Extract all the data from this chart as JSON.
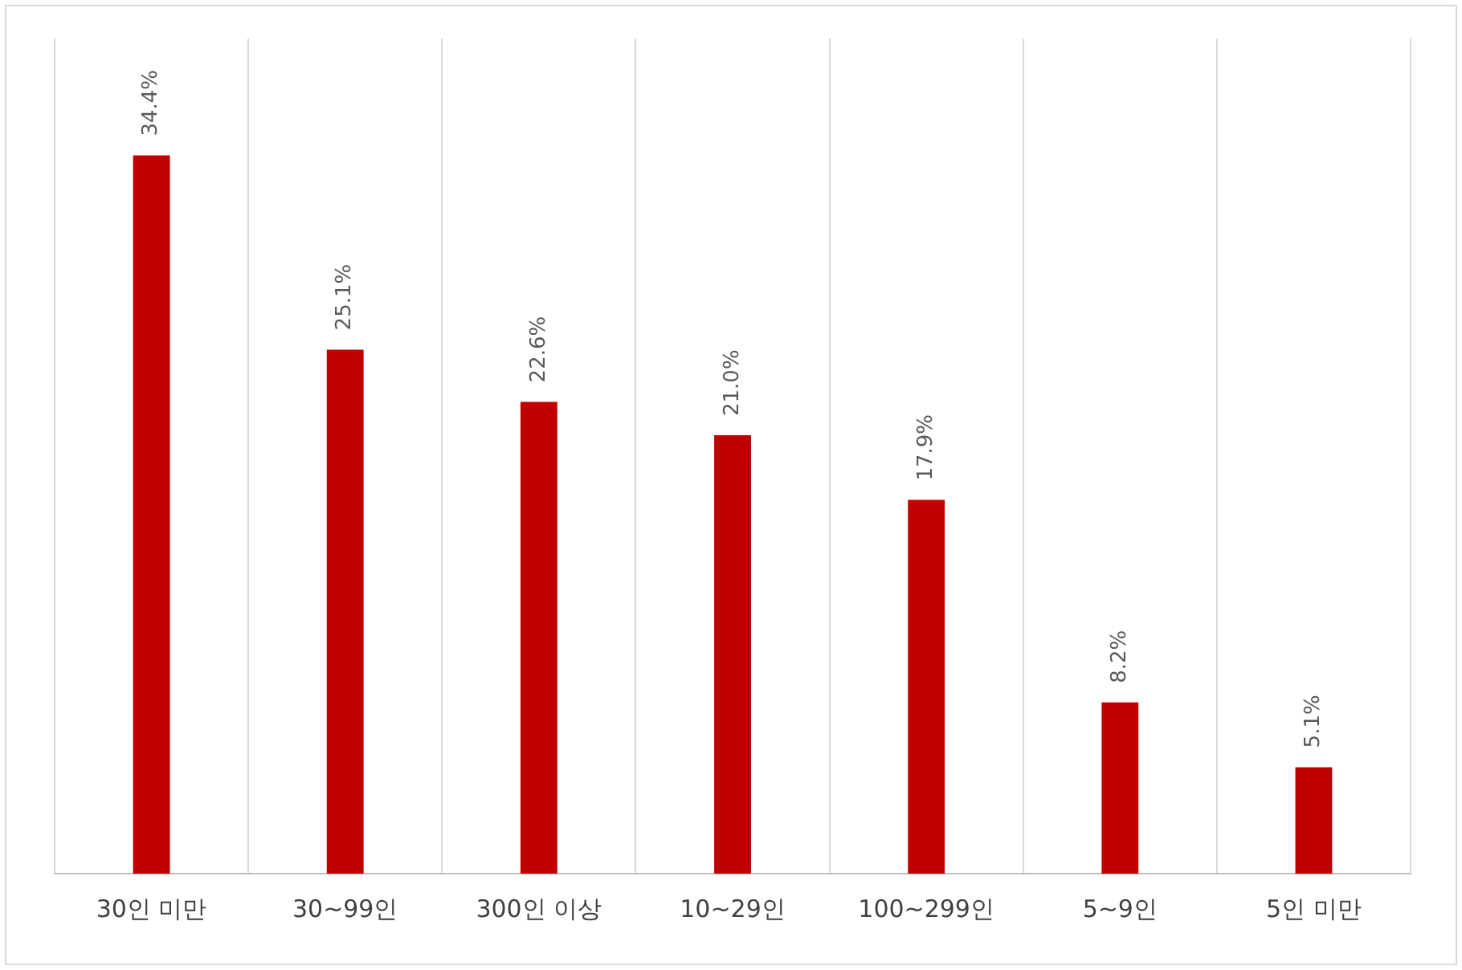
{
  "chart_data": {
    "type": "bar",
    "categories": [
      "30인 미만",
      "30~99인",
      "300인 이상",
      "10~29인",
      "100~299인",
      "5~9인",
      "5인 미만"
    ],
    "values": [
      34.4,
      25.1,
      22.6,
      21.0,
      17.9,
      8.2,
      5.1
    ],
    "value_labels": [
      "34.4%",
      "25.1%",
      "22.6%",
      "21.0%",
      "17.9%",
      "8.2%",
      "5.1%"
    ],
    "color": "#c00000",
    "grid": "x",
    "legend": false,
    "tick_labels": "x"
  }
}
